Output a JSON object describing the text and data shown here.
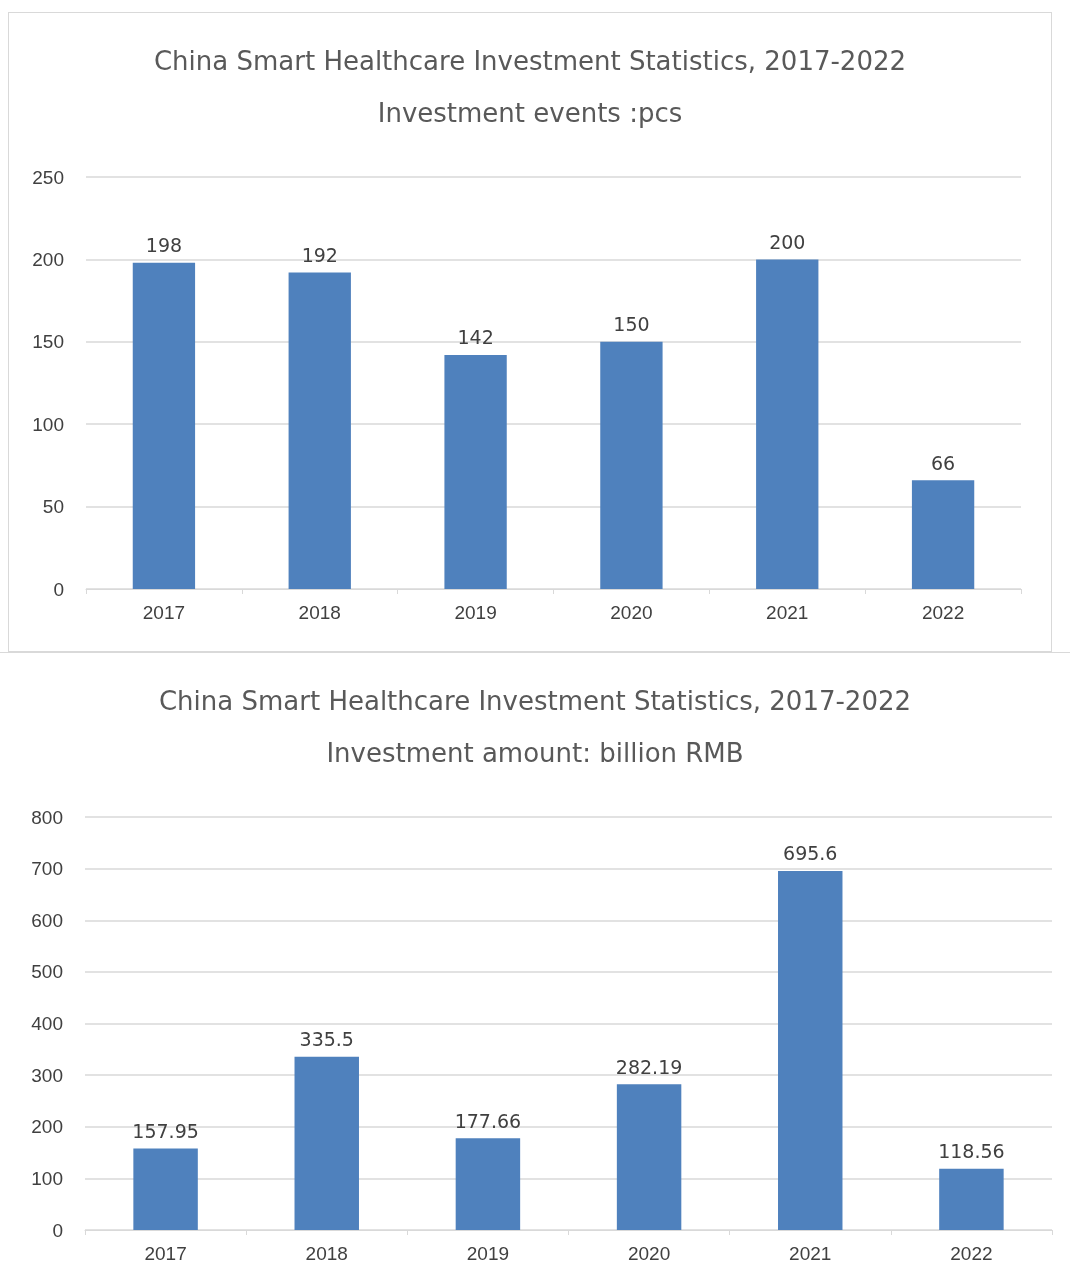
{
  "chart_data": [
    {
      "type": "bar",
      "title": "China Smart Healthcare Investment Statistics, 2017-2022",
      "subtitle": "Investment events :pcs",
      "categories": [
        "2017",
        "2018",
        "2019",
        "2020",
        "2021",
        "2022"
      ],
      "values": [
        198,
        192,
        142,
        150,
        200,
        66
      ],
      "color": "#4f81bd",
      "ylim": [
        0,
        250
      ],
      "yticks": [
        0,
        50,
        100,
        150,
        200,
        250
      ],
      "grid": "y",
      "data_labels": true
    },
    {
      "type": "bar",
      "title": "China Smart Healthcare Investment Statistics, 2017-2022",
      "subtitle": "Investment amount: billion RMB",
      "categories": [
        "2017",
        "2018",
        "2019",
        "2020",
        "2021",
        "2022"
      ],
      "values": [
        157.95,
        335.5,
        177.66,
        282.19,
        695.6,
        118.56
      ],
      "color": "#4f81bd",
      "ylim": [
        0,
        800
      ],
      "yticks": [
        0,
        100,
        200,
        300,
        400,
        500,
        600,
        700,
        800
      ],
      "grid": "y",
      "data_labels": true
    }
  ]
}
